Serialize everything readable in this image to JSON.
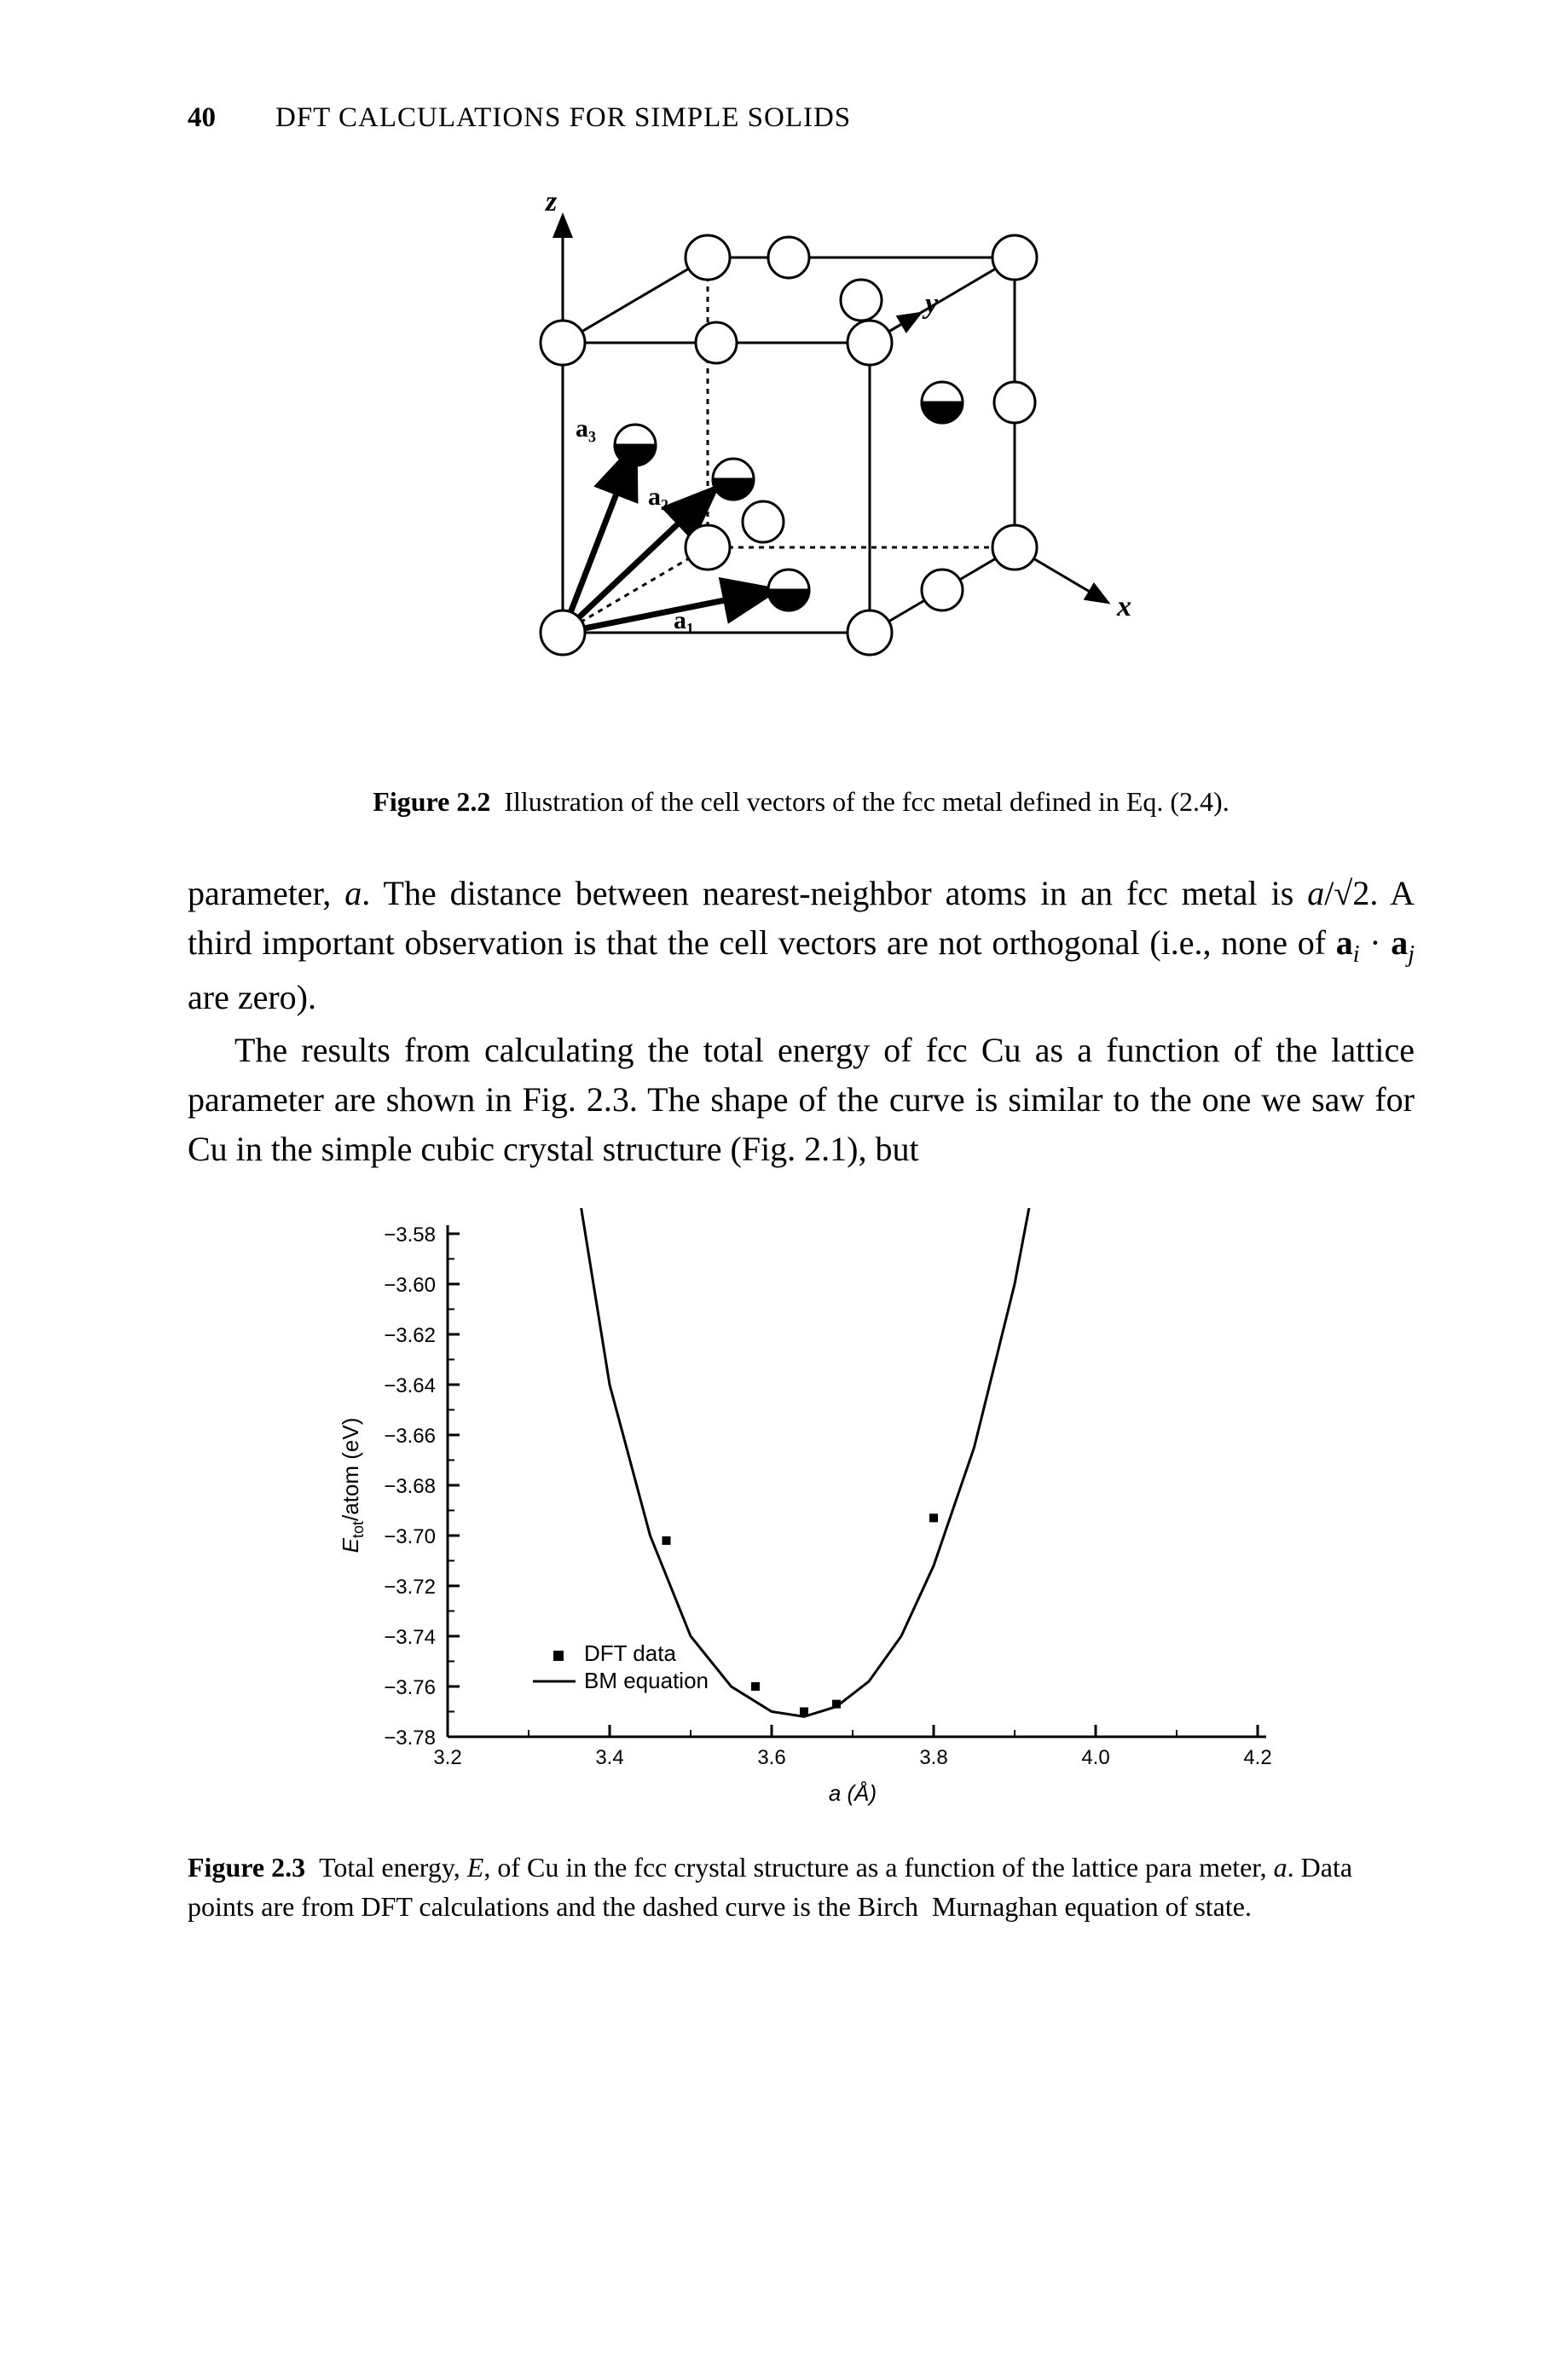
{
  "header": {
    "page_number": "40",
    "running_head": "DFT CALCULATIONS FOR SIMPLE SOLIDS"
  },
  "figure_2_2": {
    "axis_labels": {
      "x": "x",
      "y": "y",
      "z": "z"
    },
    "vector_labels": {
      "a1": "a₁",
      "a2": "a₂",
      "a3": "a₃"
    },
    "caption_label": "Figure 2.2",
    "caption_text": "Illustration of the cell vectors of the fcc metal defined in Eq. (2.4).",
    "stroke": "#000000",
    "atom_fill": "#ffffff",
    "atom_half_fill": "#000000"
  },
  "paragraph_1": "parameter, a. The distance between nearest-neighbor atoms in an fcc metal is a/√2. A third important observation is that the cell vectors are not orthogonal (i.e., none of aᵢ · aⱼ are zero).",
  "paragraph_2": "The results from calculating the total energy of fcc Cu as a function of the lattice parameter are shown in Fig. 2.3. The shape of the curve is similar to the one we saw for Cu in the simple cubic crystal structure (Fig. 2.1), but",
  "figure_2_3": {
    "type": "scatter_line",
    "background_color": "#ffffff",
    "axis_color": "#000000",
    "ylabel": "E_tot/atom (eV)",
    "xlabel": "a (Å)",
    "ylim": [
      -3.78,
      -3.58
    ],
    "xlim": [
      3.2,
      4.2
    ],
    "yticks": [
      -3.58,
      -3.6,
      -3.62,
      -3.64,
      -3.66,
      -3.68,
      -3.7,
      -3.72,
      -3.74,
      -3.76,
      -3.78
    ],
    "ytick_labels": [
      "−3.58",
      "−3.60",
      "−3.62",
      "−3.64",
      "−3.66",
      "−3.68",
      "−3.70",
      "−3.72",
      "−3.74",
      "−3.76",
      "−3.78"
    ],
    "xticks": [
      3.2,
      3.4,
      3.6,
      3.8,
      4.0,
      4.2
    ],
    "xtick_labels": [
      "3.2",
      "3.4",
      "3.6",
      "3.8",
      "4.0",
      "4.2"
    ],
    "tick_font_size": 24,
    "axis_font_size": 26,
    "line_color": "#000000",
    "line_width": 3,
    "marker_color": "#000000",
    "marker_size": 10,
    "dft_points": [
      {
        "x": 3.47,
        "y": -3.702
      },
      {
        "x": 3.58,
        "y": -3.76
      },
      {
        "x": 3.64,
        "y": -3.77
      },
      {
        "x": 3.68,
        "y": -3.767
      },
      {
        "x": 3.8,
        "y": -3.693
      }
    ],
    "bm_curve": [
      {
        "x": 3.3,
        "y": -3.4
      },
      {
        "x": 3.35,
        "y": -3.54
      },
      {
        "x": 3.4,
        "y": -3.64
      },
      {
        "x": 3.45,
        "y": -3.7
      },
      {
        "x": 3.5,
        "y": -3.74
      },
      {
        "x": 3.55,
        "y": -3.76
      },
      {
        "x": 3.6,
        "y": -3.77
      },
      {
        "x": 3.64,
        "y": -3.772
      },
      {
        "x": 3.68,
        "y": -3.768
      },
      {
        "x": 3.72,
        "y": -3.758
      },
      {
        "x": 3.76,
        "y": -3.74
      },
      {
        "x": 3.8,
        "y": -3.712
      },
      {
        "x": 3.85,
        "y": -3.665
      },
      {
        "x": 3.9,
        "y": -3.6
      },
      {
        "x": 3.95,
        "y": -3.515
      },
      {
        "x": 4.0,
        "y": -3.4
      }
    ],
    "legend": {
      "items": [
        {
          "marker": "square",
          "label": "DFT data"
        },
        {
          "marker": "line",
          "label": "BM equation"
        }
      ],
      "font_size": 26
    },
    "caption_label": "Figure 2.3",
    "caption_text": "Total energy, E, of Cu in the fcc crystal structure as a function of the lattice para meter, a. Data points are from DFT calculations and the dashed curve is the Birch  Murnaghan equation of state."
  }
}
